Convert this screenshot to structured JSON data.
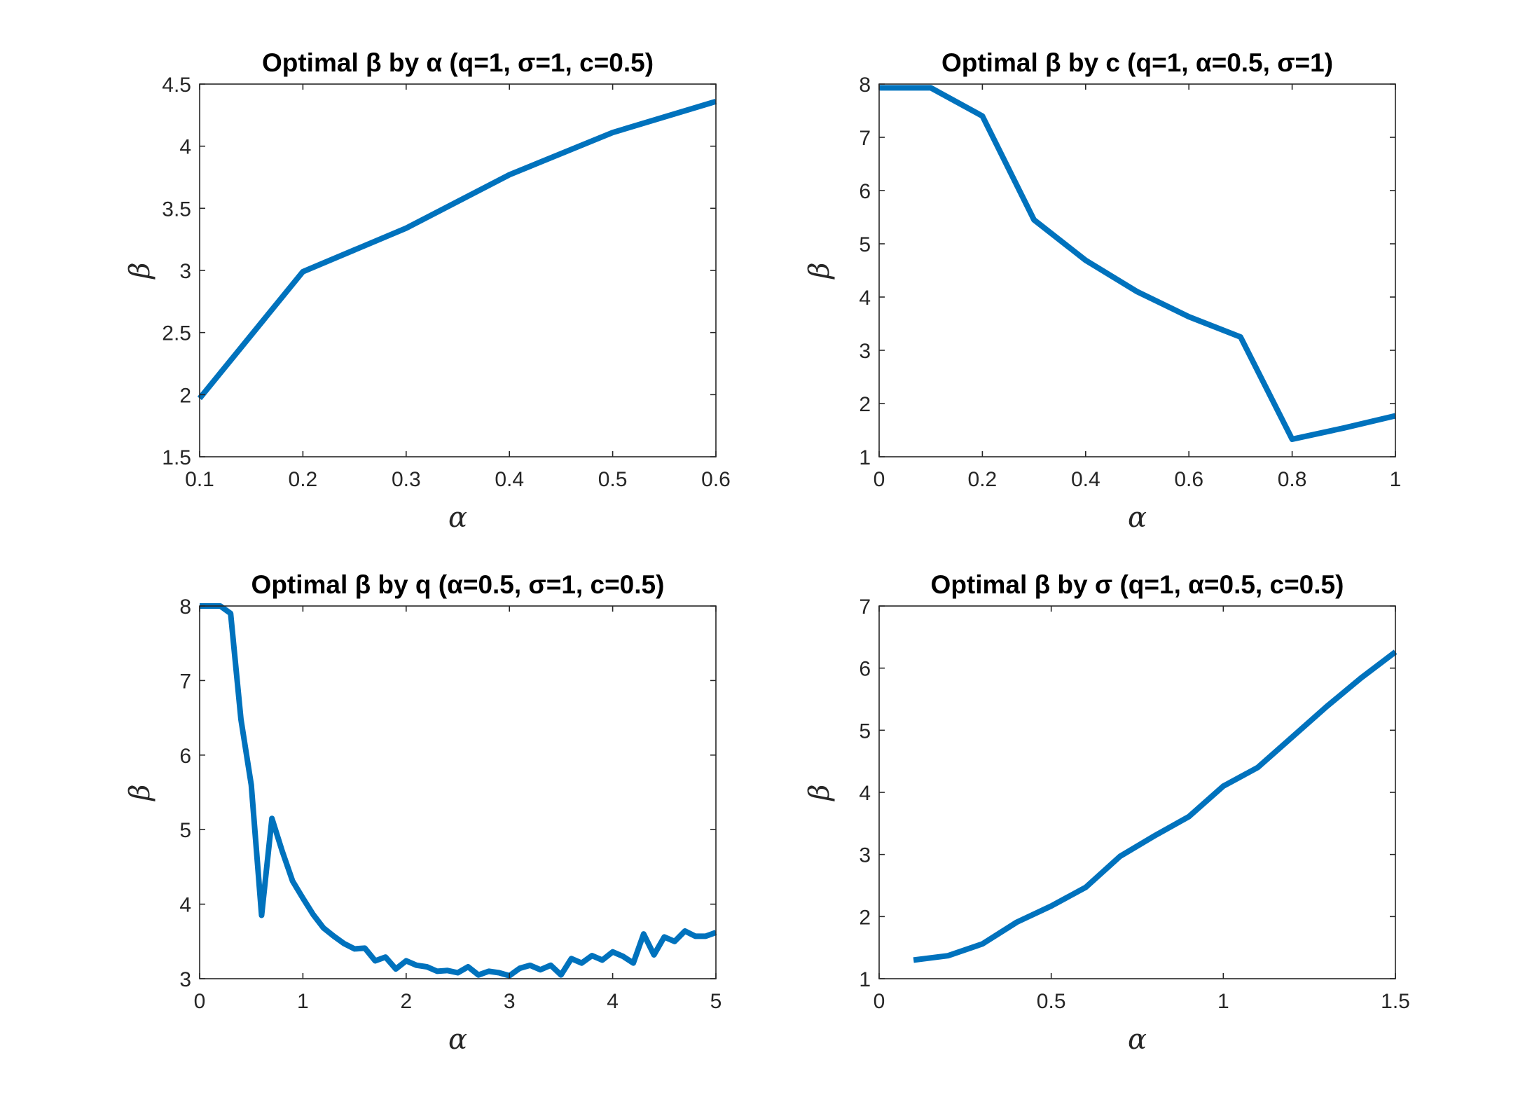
{
  "chart_data": [
    {
      "type": "line",
      "title": "Optimal β by α (q=1, σ=1, c=0.5)",
      "xlabel": "α",
      "ylabel": "β",
      "xlim": [
        0.1,
        0.6
      ],
      "ylim": [
        1.5,
        4.5
      ],
      "xticks": [
        "0.1",
        "0.2",
        "0.3",
        "0.4",
        "0.5",
        "0.6"
      ],
      "yticks": [
        "1.5",
        "2",
        "2.5",
        "3",
        "3.5",
        "4",
        "4.5"
      ],
      "color": "#0072BD",
      "grid": false,
      "series": [
        {
          "x": [
            0.1,
            0.2,
            0.3,
            0.4,
            0.5,
            0.6
          ],
          "y": [
            1.97,
            2.99,
            3.34,
            3.77,
            4.11,
            4.36
          ]
        }
      ]
    },
    {
      "type": "line",
      "title": "Optimal β by c (q=1, α=0.5, σ=1)",
      "xlabel": "α",
      "ylabel": "β",
      "xlim": [
        0,
        1
      ],
      "ylim": [
        1,
        8
      ],
      "xticks": [
        "0",
        "0.2",
        "0.4",
        "0.6",
        "0.8",
        "1"
      ],
      "yticks": [
        "1",
        "2",
        "3",
        "4",
        "5",
        "6",
        "7",
        "8"
      ],
      "color": "#0072BD",
      "grid": false,
      "series": [
        {
          "x": [
            0,
            0.1,
            0.2,
            0.3,
            0.4,
            0.5,
            0.6,
            0.7,
            0.8,
            0.9,
            1.0
          ],
          "y": [
            7.93,
            7.93,
            7.4,
            5.45,
            4.69,
            4.1,
            3.63,
            3.25,
            1.33,
            1.54,
            1.77
          ]
        }
      ]
    },
    {
      "type": "line",
      "title": "Optimal β by q (α=0.5, σ=1, c=0.5)",
      "xlabel": "α",
      "ylabel": "β",
      "xlim": [
        0,
        5
      ],
      "ylim": [
        3,
        8
      ],
      "xticks": [
        "0",
        "1",
        "2",
        "3",
        "4",
        "5"
      ],
      "yticks": [
        "3",
        "4",
        "5",
        "6",
        "7",
        "8"
      ],
      "color": "#0072BD",
      "grid": false,
      "series": [
        {
          "x": [
            0,
            0.1,
            0.2,
            0.3,
            0.4,
            0.5,
            0.6,
            0.7,
            0.8,
            0.9,
            1.0,
            1.1,
            1.2,
            1.3,
            1.4,
            1.5,
            1.6,
            1.7,
            1.8,
            1.9,
            2.0,
            2.1,
            2.2,
            2.3,
            2.4,
            2.5,
            2.6,
            2.7,
            2.8,
            2.9,
            3.0,
            3.1,
            3.2,
            3.3,
            3.4,
            3.5,
            3.6,
            3.7,
            3.8,
            3.9,
            4.0,
            4.1,
            4.2,
            4.3,
            4.4,
            4.5,
            4.6,
            4.7,
            4.8,
            4.9,
            5.0
          ],
          "y": [
            8.0,
            8.0,
            8.0,
            7.9,
            6.48,
            5.6,
            3.85,
            5.15,
            4.71,
            4.31,
            4.08,
            3.86,
            3.68,
            3.57,
            3.47,
            3.4,
            3.41,
            3.24,
            3.29,
            3.13,
            3.24,
            3.18,
            3.16,
            3.1,
            3.11,
            3.08,
            3.16,
            3.05,
            3.1,
            3.08,
            3.04,
            3.14,
            3.18,
            3.12,
            3.18,
            3.05,
            3.27,
            3.21,
            3.31,
            3.25,
            3.36,
            3.3,
            3.21,
            3.6,
            3.32,
            3.56,
            3.5,
            3.64,
            3.57,
            3.57,
            3.62
          ]
        }
      ]
    },
    {
      "type": "line",
      "title": "Optimal β by σ (q=1, α=0.5, c=0.5)",
      "xlabel": "α",
      "ylabel": "β",
      "xlim": [
        0,
        1.5
      ],
      "ylim": [
        1,
        7
      ],
      "xticks": [
        "0",
        "0.5",
        "1",
        "1.5"
      ],
      "yticks": [
        "1",
        "2",
        "3",
        "4",
        "5",
        "6",
        "7"
      ],
      "color": "#0072BD",
      "grid": false,
      "series": [
        {
          "x": [
            0.1,
            0.2,
            0.3,
            0.4,
            0.5,
            0.6,
            0.7,
            0.8,
            0.9,
            1.0,
            1.1,
            1.2,
            1.3,
            1.4,
            1.5
          ],
          "y": [
            1.3,
            1.37,
            1.56,
            1.91,
            2.17,
            2.47,
            2.97,
            3.3,
            3.61,
            4.1,
            4.4,
            4.89,
            5.38,
            5.84,
            6.26
          ]
        }
      ]
    }
  ]
}
